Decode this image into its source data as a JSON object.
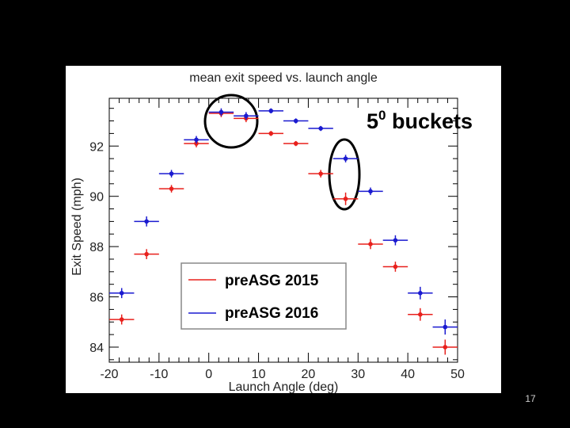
{
  "chart_data": {
    "type": "scatter",
    "title": "mean exit speed vs. launch angle",
    "xlabel": "Launch Angle (deg)",
    "ylabel": "Exit Speed (mph)",
    "xlim": [
      -20,
      50
    ],
    "ylim": [
      83.4,
      93.9
    ],
    "x_ticks": [
      -20,
      -10,
      0,
      10,
      20,
      30,
      40,
      50
    ],
    "y_ticks": [
      84,
      86,
      88,
      90,
      92
    ],
    "x_tick_labels": [
      "-20",
      "-10",
      "0",
      "10",
      "20",
      "30",
      "40",
      "50"
    ],
    "y_tick_labels": [
      "84",
      "86",
      "88",
      "90",
      "92"
    ],
    "bucket_half_width": 2.5,
    "x": [
      -17.5,
      -12.5,
      -7.5,
      -2.5,
      2.5,
      7.5,
      12.5,
      17.5,
      22.5,
      27.5,
      32.5,
      37.5,
      42.5,
      47.5
    ],
    "series": [
      {
        "name": "preASG 2015",
        "color": "#e8201c",
        "values": [
          85.1,
          87.7,
          90.3,
          92.1,
          93.3,
          93.1,
          92.5,
          92.1,
          90.9,
          89.9,
          88.1,
          87.2,
          85.3,
          84.0
        ],
        "y_err": [
          0.2,
          0.2,
          0.15,
          0.15,
          0.15,
          0.15,
          0.1,
          0.1,
          0.15,
          0.25,
          0.2,
          0.2,
          0.25,
          0.3
        ]
      },
      {
        "name": "preASG 2016",
        "color": "#1a1ad0",
        "values": [
          86.15,
          89.0,
          90.9,
          92.25,
          93.35,
          93.2,
          93.4,
          93.0,
          92.7,
          91.5,
          90.2,
          88.25,
          86.15,
          84.8
        ],
        "y_err": [
          0.2,
          0.2,
          0.15,
          0.15,
          0.15,
          0.15,
          0.1,
          0.1,
          0.1,
          0.15,
          0.15,
          0.2,
          0.25,
          0.3
        ]
      }
    ],
    "legend": {
      "placement": "bottom-center"
    },
    "annotation": {
      "base": "5",
      "superscript": "0",
      "text": " buckets"
    }
  },
  "slide_number": "17"
}
